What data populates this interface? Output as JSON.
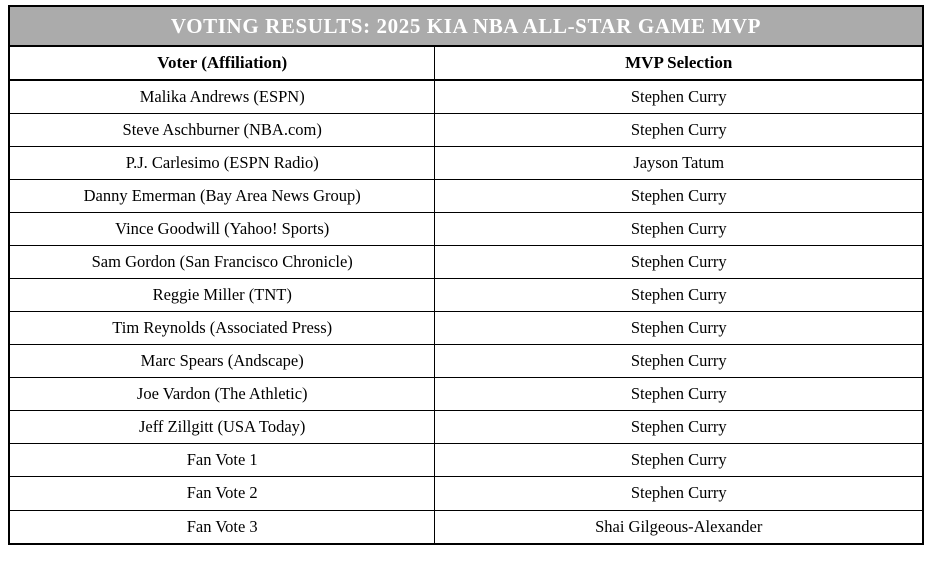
{
  "table": {
    "title": "VOTING RESULTS: 2025 KIA NBA ALL-STAR GAME MVP",
    "columns": [
      "Voter (Affiliation)",
      "MVP Selection"
    ],
    "rows": [
      {
        "voter": "Malika Andrews (ESPN)",
        "selection": "Stephen Curry"
      },
      {
        "voter": "Steve Aschburner (NBA.com)",
        "selection": "Stephen Curry"
      },
      {
        "voter": "P.J. Carlesimo (ESPN Radio)",
        "selection": "Jayson Tatum"
      },
      {
        "voter": "Danny Emerman (Bay Area News Group)",
        "selection": "Stephen Curry"
      },
      {
        "voter": "Vince Goodwill (Yahoo! Sports)",
        "selection": "Stephen Curry"
      },
      {
        "voter": "Sam Gordon (San Francisco Chronicle)",
        "selection": "Stephen Curry"
      },
      {
        "voter": "Reggie Miller (TNT)",
        "selection": "Stephen Curry"
      },
      {
        "voter": "Tim Reynolds (Associated Press)",
        "selection": "Stephen Curry"
      },
      {
        "voter": "Marc Spears (Andscape)",
        "selection": "Stephen Curry"
      },
      {
        "voter": "Joe Vardon (The Athletic)",
        "selection": "Stephen Curry"
      },
      {
        "voter": "Jeff Zillgitt (USA Today)",
        "selection": "Stephen Curry"
      },
      {
        "voter": "Fan Vote 1",
        "selection": "Stephen Curry"
      },
      {
        "voter": "Fan Vote 2",
        "selection": "Stephen Curry"
      },
      {
        "voter": "Fan Vote 3",
        "selection": "Shai Gilgeous-Alexander"
      }
    ],
    "colors": {
      "title_bg": "#ababab",
      "title_text": "#ffffff",
      "border": "#000000"
    }
  }
}
